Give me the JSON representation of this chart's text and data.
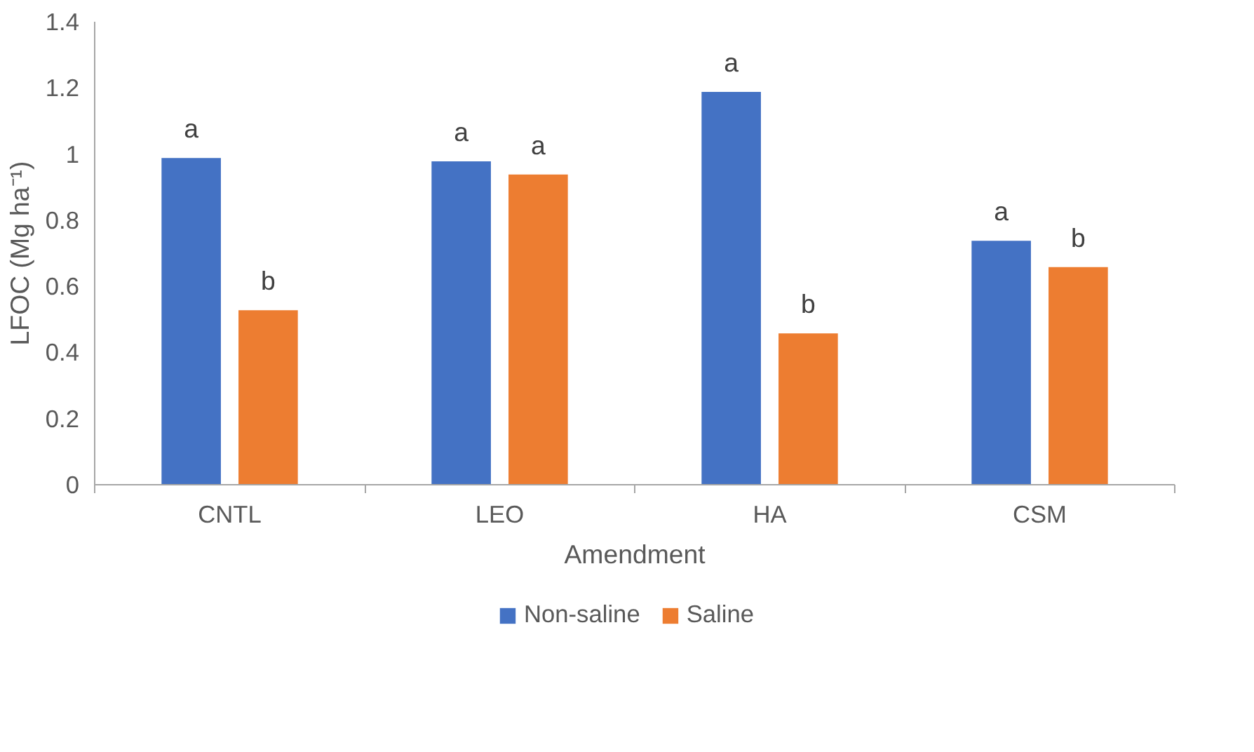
{
  "chart_data": {
    "type": "bar",
    "xlabel": "Amendment",
    "ylabel": "LFOC (Mg ha⁻¹)",
    "categories": [
      "CNTL",
      "LEO",
      "HA",
      "CSM"
    ],
    "series": [
      {
        "name": "Non-saline",
        "color": "#4472c4",
        "values": [
          0.99,
          0.98,
          1.19,
          0.74
        ]
      },
      {
        "name": "Saline",
        "color": "#ed7d31",
        "values": [
          0.53,
          0.94,
          0.46,
          0.66
        ]
      }
    ],
    "ylim": [
      0,
      1.4
    ],
    "yticks": [
      0,
      0.2,
      0.4,
      0.6,
      0.8,
      1,
      1.2,
      1.4
    ],
    "grid": false,
    "legend": "bottom",
    "annotations": [
      "a",
      "b",
      "a",
      "a",
      "a",
      "b",
      "a",
      "b"
    ]
  }
}
